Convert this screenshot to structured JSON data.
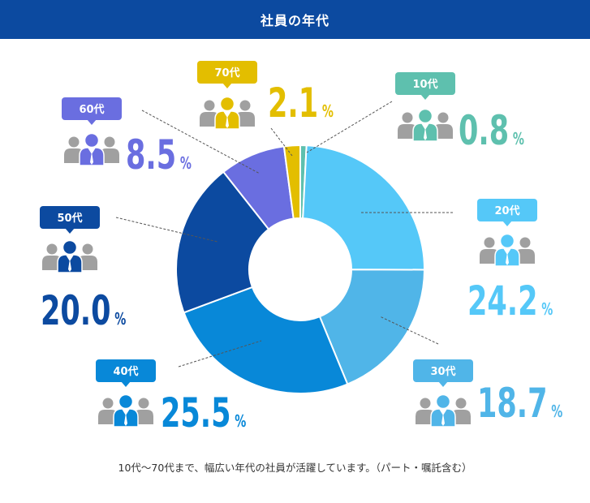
{
  "header": {
    "title": "社員の年代"
  },
  "chart_data": {
    "type": "pie",
    "title": "社員の年代",
    "unit": "%",
    "categories": [
      "10代",
      "20代",
      "30代",
      "40代",
      "50代",
      "60代",
      "70代"
    ],
    "values": [
      0.8,
      24.2,
      18.7,
      25.5,
      20.0,
      8.5,
      2.1
    ],
    "value_labels": [
      "0.8",
      "24.2",
      "18.7",
      "25.5",
      "20.0",
      "8.5",
      "2.1"
    ],
    "colors": [
      "#5ec0ae",
      "#55c8f8",
      "#50b5e8",
      "#0888d8",
      "#0c4aa0",
      "#6a6ee0",
      "#e3be00"
    ],
    "donut": true,
    "legend": "callouts"
  },
  "caption": "10代〜70代まで、幅広い年代の社員が活躍しています。（パート・嘱託含む）"
}
